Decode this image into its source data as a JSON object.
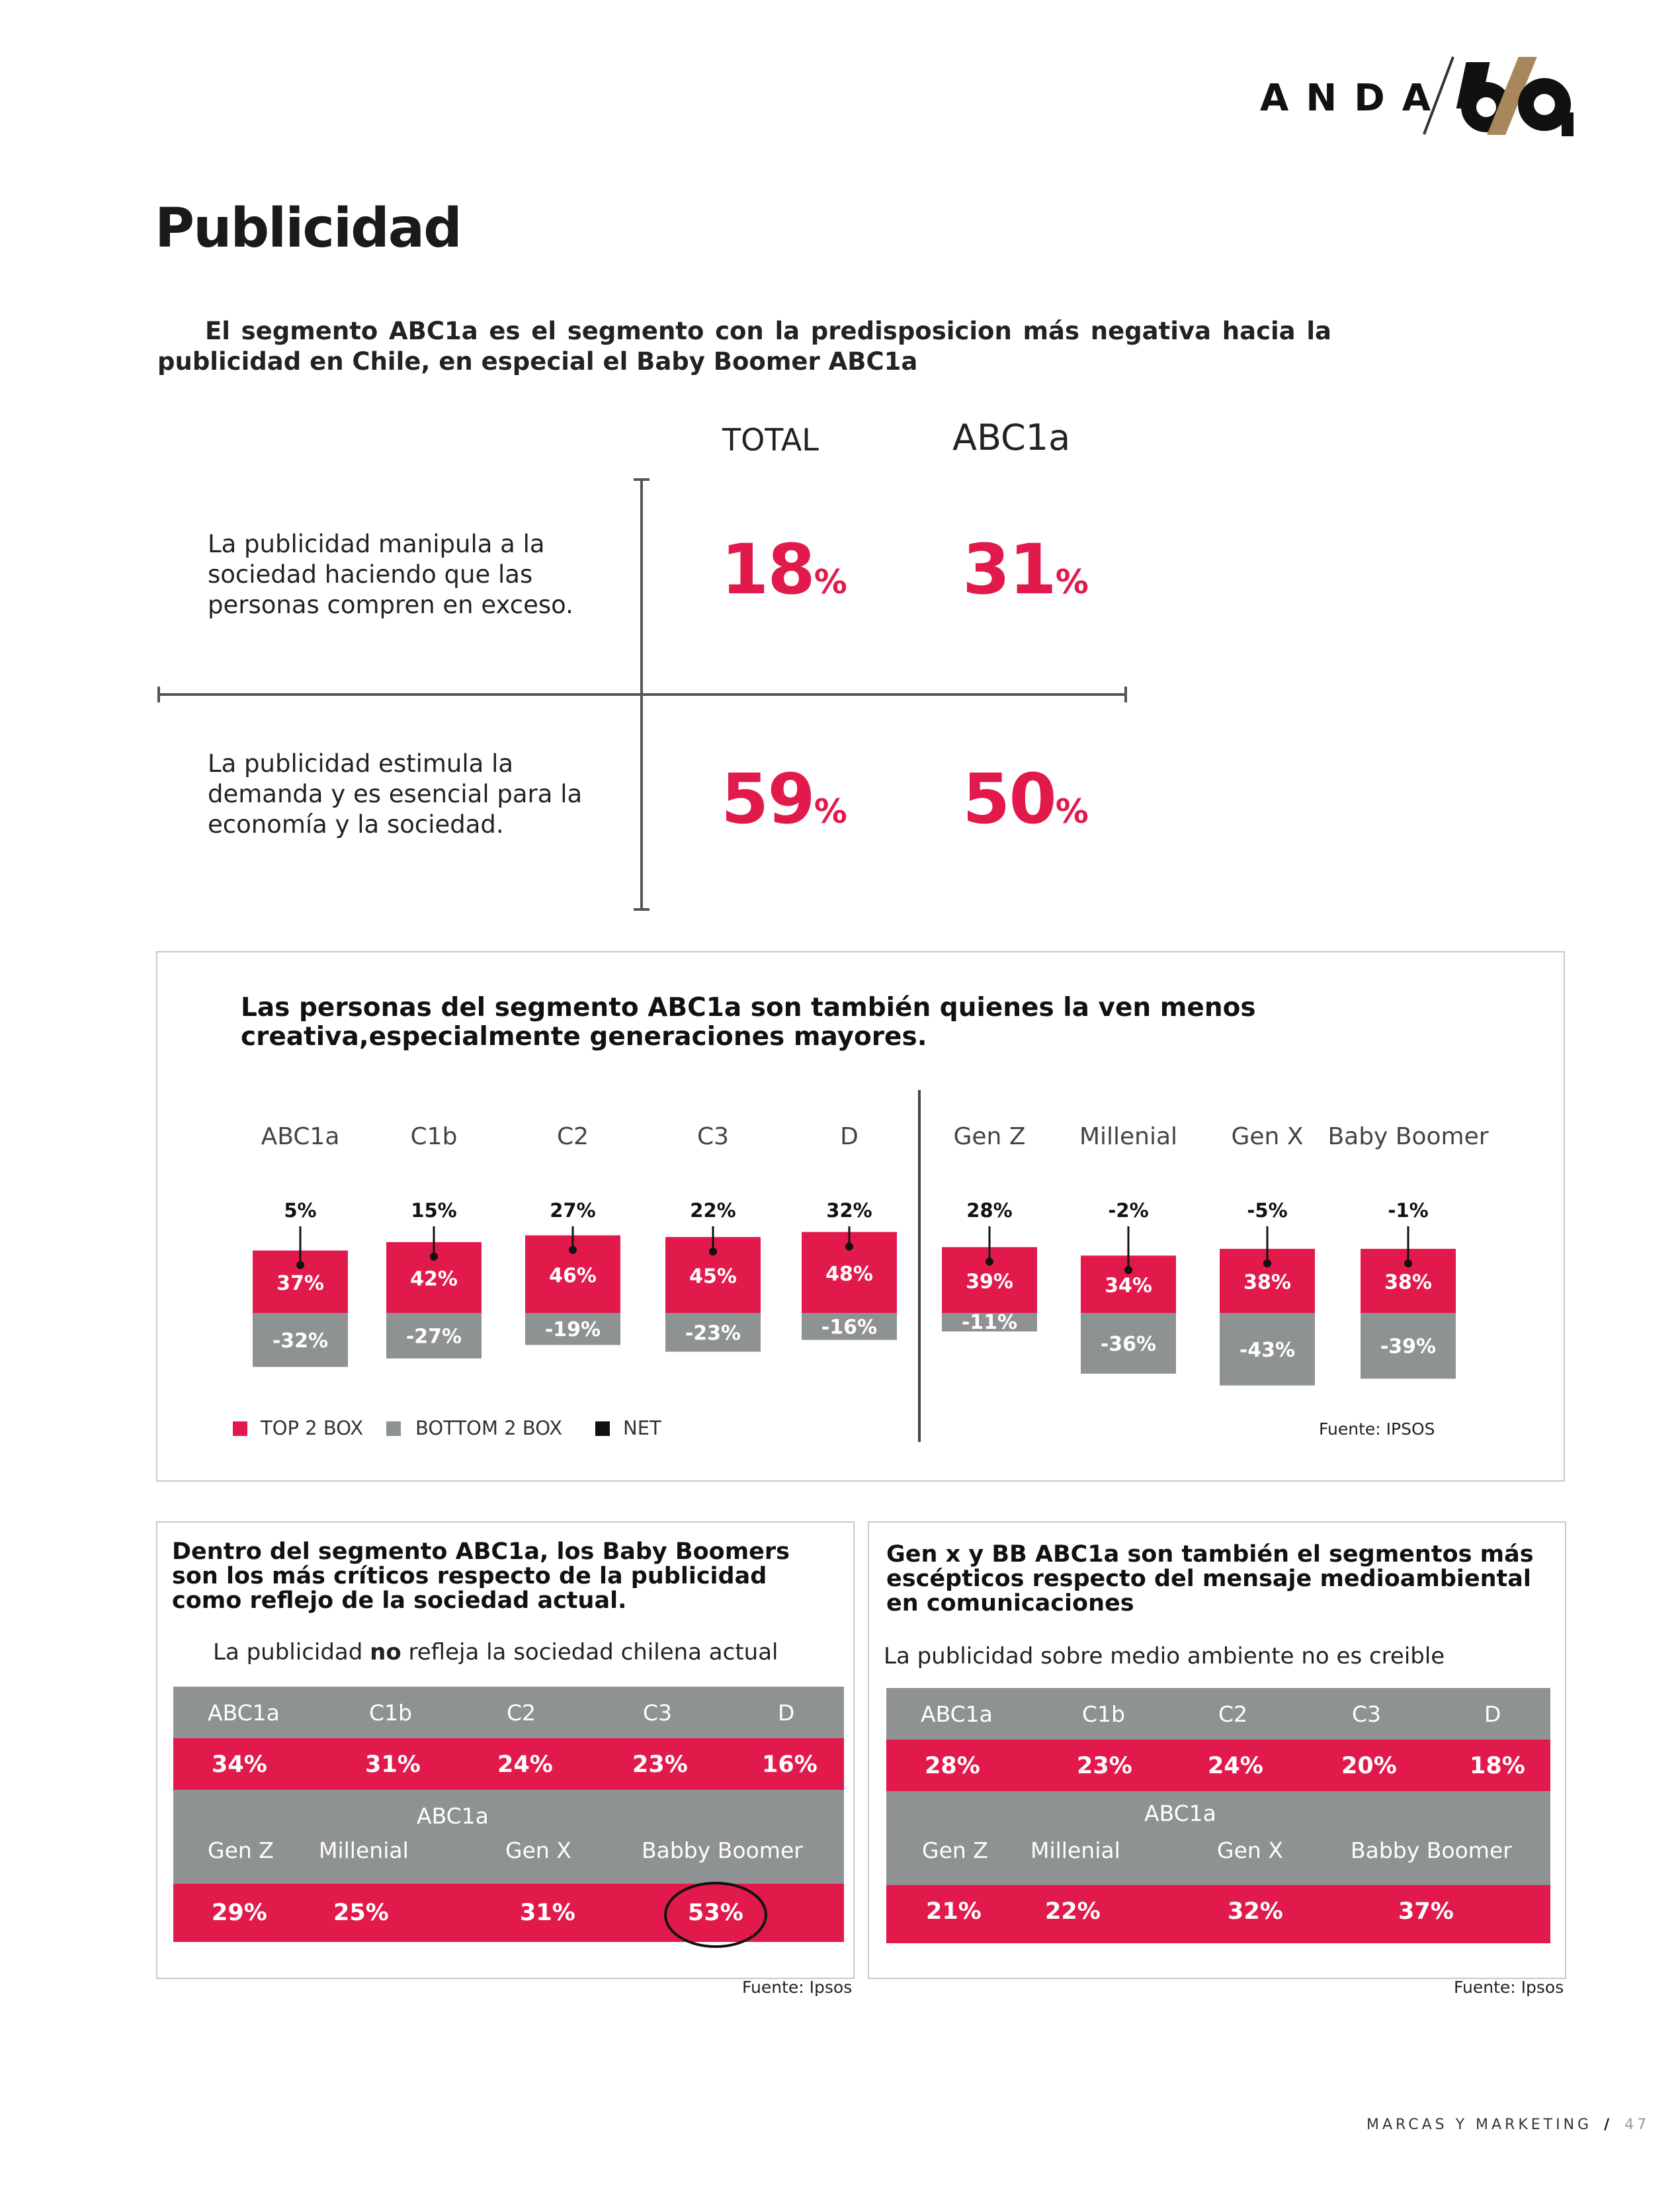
{
  "logo": {
    "brand": "ANDA",
    "anniversary": "60"
  },
  "page_title": "Publicidad",
  "intro": "El segmento ABC1a es el segmento con la predisposicion más negativa hacia la publicidad en Chile, en especial el Baby Boomer ABC1a",
  "comparison": {
    "col_total": "TOTAL",
    "col_abc1a": "ABC1a",
    "rows": [
      {
        "statement": "La publicidad manipula a la sociedad haciendo que las personas compren en exceso.",
        "total": "18",
        "abc1a": "31"
      },
      {
        "statement": "La publicidad estimula la demanda y es esencial para la economía y la sociedad.",
        "total": "59",
        "abc1a": "50"
      }
    ],
    "pct_sign": "%"
  },
  "creativity_panel": {
    "title": "Las personas del segmento ABC1a son también quienes la ven menos creativa,especialmente generaciones mayores.",
    "legend": [
      "TOP 2 BOX",
      "BOTTOM 2 BOX",
      "NET"
    ],
    "source": "Fuente: IPSOS"
  },
  "chart_data": {
    "type": "bar",
    "categories": [
      "ABC1a",
      "C1b",
      "C2",
      "C3",
      "D",
      "Gen Z",
      "Millenial",
      "Gen X",
      "Baby Boomer"
    ],
    "series": [
      {
        "name": "TOP 2 BOX",
        "values": [
          37,
          42,
          46,
          45,
          48,
          39,
          34,
          38,
          38
        ],
        "labels": [
          "37%",
          "42%",
          "46%",
          "45%",
          "48%",
          "39%",
          "34%",
          "38%",
          "38%"
        ]
      },
      {
        "name": "BOTTOM 2 BOX",
        "values": [
          -32,
          -27,
          -19,
          -23,
          -16,
          -11,
          -36,
          -43,
          -39
        ],
        "labels": [
          "-32%",
          "-27%",
          "-19%",
          "-23%",
          "-16%",
          "-11%",
          "-36%",
          "-43%",
          "-39%"
        ]
      },
      {
        "name": "NET",
        "values": [
          5,
          15,
          27,
          22,
          32,
          28,
          -2,
          -5,
          -1
        ],
        "labels": [
          "5%",
          "15%",
          "27%",
          "22%",
          "32%",
          "28%",
          "-2%",
          "-5%",
          "-1%"
        ]
      }
    ],
    "colors": {
      "top": "#e21a4c",
      "bottom": "#8f9293",
      "net": "#111111"
    }
  },
  "card_left": {
    "title": "Dentro del segmento ABC1a, los Baby Boomers son los más críticos respecto de la publicidad como reflejo de la sociedad actual.",
    "subtitle_pre": "La publicidad ",
    "subtitle_bold": "no",
    "subtitle_post": " refleja la sociedad chilena actual",
    "segments": [
      "ABC1a",
      "C1b",
      "C2",
      "C3",
      "D"
    ],
    "segment_values": [
      "34%",
      "31%",
      "24%",
      "23%",
      "16%"
    ],
    "group_label": "ABC1a",
    "generations": [
      "Gen Z",
      "Millenial",
      "Gen X",
      "Babby Boomer"
    ],
    "generation_values": [
      "29%",
      "25%",
      "31%",
      "53%"
    ],
    "source": "Fuente: Ipsos"
  },
  "card_right": {
    "title": "Gen x y BB ABC1a son también el segmentos más escépticos respecto del mensaje medioambiental en comunicaciones",
    "subtitle": "La publicidad sobre medio ambiente no es creible",
    "segments": [
      "ABC1a",
      "C1b",
      "C2",
      "C3",
      "D"
    ],
    "segment_values": [
      "28%",
      "23%",
      "24%",
      "20%",
      "18%"
    ],
    "group_label": "ABC1a",
    "generations": [
      "Gen Z",
      "Millenial",
      "Gen X",
      "Babby Boomer"
    ],
    "generation_values": [
      "21%",
      "22%",
      "32%",
      "37%"
    ],
    "source": "Fuente: Ipsos"
  },
  "footer": {
    "section": "MARCAS Y MARKETING",
    "separator": "/",
    "page": "47"
  }
}
